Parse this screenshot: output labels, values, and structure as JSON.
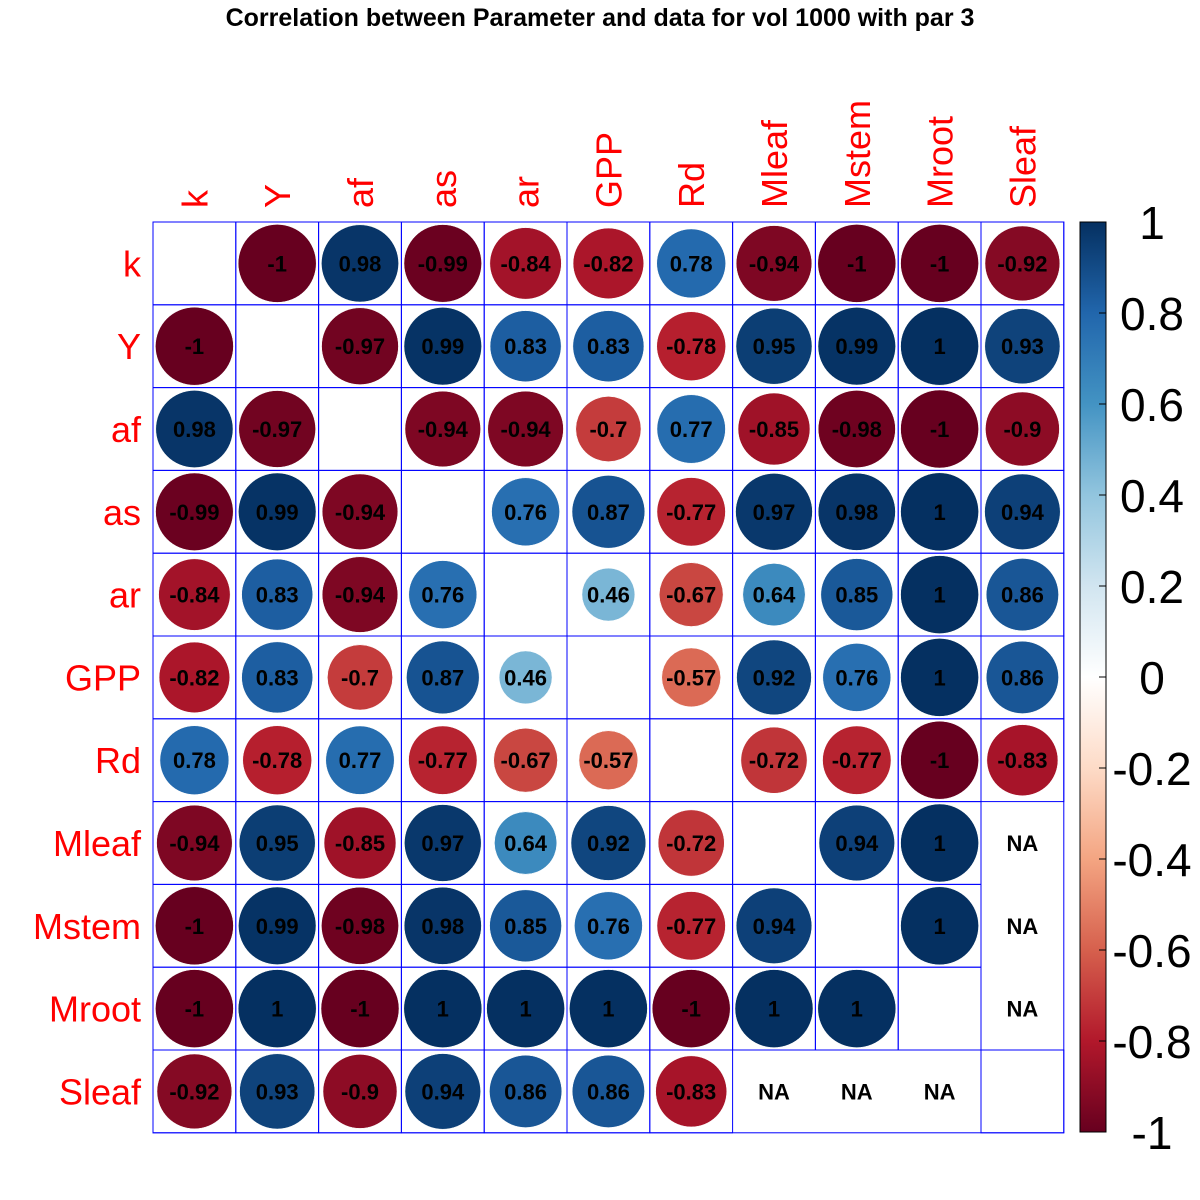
{
  "chart_data": {
    "type": "heatmap",
    "title": "Correlation between Parameter and data for vol 1000 with par 3",
    "variables": [
      "k",
      "Y",
      "af",
      "as",
      "ar",
      "GPP",
      "Rd",
      "Mleaf",
      "Mstem",
      "Mroot",
      "Sleaf"
    ],
    "matrix": [
      [
        null,
        -1,
        0.98,
        -0.99,
        -0.84,
        -0.82,
        0.78,
        -0.94,
        -1,
        -1,
        -0.92
      ],
      [
        -1,
        null,
        -0.97,
        0.99,
        0.83,
        0.83,
        -0.78,
        0.95,
        0.99,
        1,
        0.93
      ],
      [
        0.98,
        -0.97,
        null,
        -0.94,
        -0.94,
        -0.7,
        0.77,
        -0.85,
        -0.98,
        -1,
        -0.9
      ],
      [
        -0.99,
        0.99,
        -0.94,
        null,
        0.76,
        0.87,
        -0.77,
        0.97,
        0.98,
        1,
        0.94
      ],
      [
        -0.84,
        0.83,
        -0.94,
        0.76,
        null,
        0.46,
        -0.67,
        0.64,
        0.85,
        1,
        0.86
      ],
      [
        -0.82,
        0.83,
        -0.7,
        0.87,
        0.46,
        null,
        -0.57,
        0.92,
        0.76,
        1,
        0.86
      ],
      [
        0.78,
        -0.78,
        0.77,
        -0.77,
        -0.67,
        -0.57,
        null,
        -0.72,
        -0.77,
        -1,
        -0.83
      ],
      [
        -0.94,
        0.95,
        -0.85,
        0.97,
        0.64,
        0.92,
        -0.72,
        null,
        0.94,
        1,
        "NA"
      ],
      [
        -1,
        0.99,
        -0.98,
        0.98,
        0.85,
        0.76,
        -0.77,
        0.94,
        null,
        1,
        "NA"
      ],
      [
        -1,
        1,
        -1,
        1,
        1,
        1,
        -1,
        1,
        1,
        null,
        "NA"
      ],
      [
        -0.92,
        0.93,
        -0.9,
        0.94,
        0.86,
        0.86,
        -0.83,
        "NA",
        "NA",
        "NA",
        null
      ]
    ],
    "color_scale": {
      "range": [
        -1,
        1
      ],
      "ticks": [
        "1",
        "0.8",
        "0.6",
        "0.4",
        "0.2",
        "0",
        "-0.2",
        "-0.4",
        "-0.6",
        "-0.8",
        "-1"
      ],
      "stops": [
        "#67001F",
        "#B2182B",
        "#D6604D",
        "#F4A582",
        "#FDDBC7",
        "#FFFFFF",
        "#D1E5F0",
        "#92C5DE",
        "#4393C3",
        "#2166AC",
        "#053061"
      ]
    },
    "label_color": "#FF0000",
    "grid_color": "#0000FF"
  }
}
